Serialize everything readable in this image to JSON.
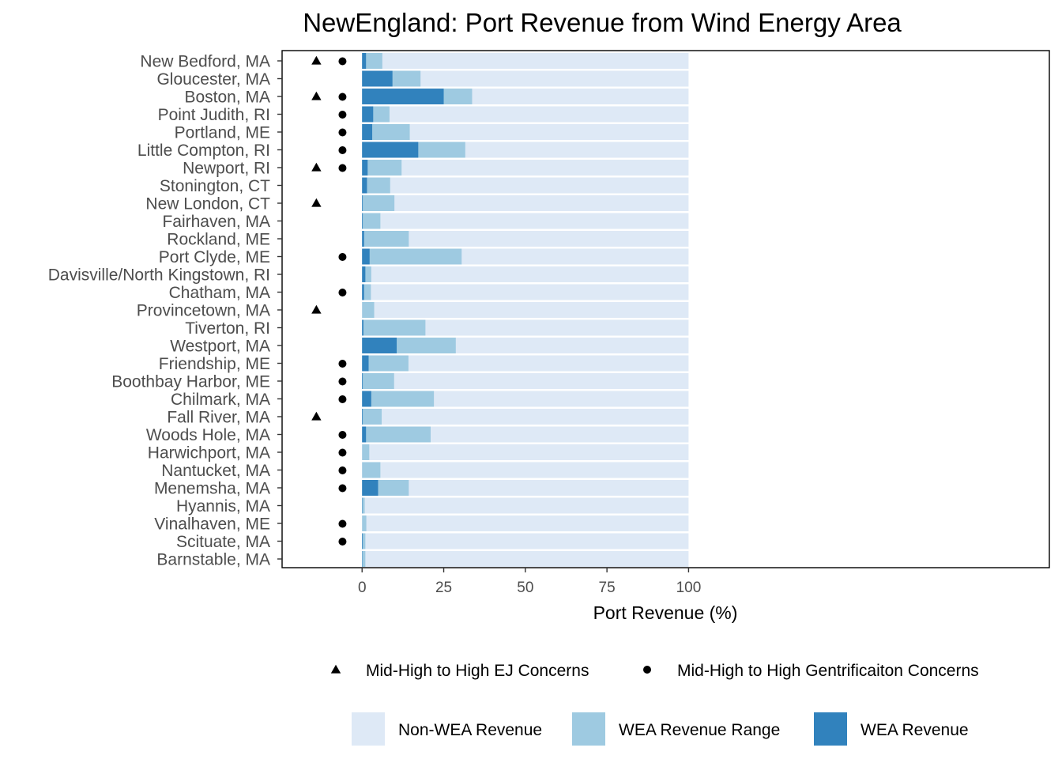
{
  "chart_data": {
    "type": "bar",
    "title": "NewEngland: Port Revenue from Wind Energy Area",
    "xlabel": "Port Revenue (%)",
    "ylabel": "",
    "xlim": [
      -24.5,
      210.5
    ],
    "xticks": [
      0,
      25,
      50,
      75,
      100
    ],
    "grid": false,
    "legend_position": "bottom",
    "colors": {
      "non_wea": "#dee9f6",
      "wea_range": "#9ecae1",
      "wea": "#3182bd",
      "marker": "#000000"
    },
    "categories": [
      "New Bedford, MA",
      "Gloucester, MA",
      "Boston, MA",
      "Point Judith, RI",
      "Portland, ME",
      "Little Compton, RI",
      "Newport, RI",
      "Stonington, CT",
      "New London, CT",
      "Fairhaven, MA",
      "Rockland, ME",
      "Port Clyde, ME",
      "Davisville/North Kingstown, RI",
      "Chatham, MA",
      "Provincetown, MA",
      "Tiverton, RI",
      "Westport, MA",
      "Friendship, ME",
      "Boothbay Harbor, ME",
      "Chilmark, MA",
      "Fall River, MA",
      "Woods Hole, MA",
      "Harwichport, MA",
      "Nantucket, MA",
      "Menemsha, MA",
      "Hyannis, MA",
      "Vinalhaven, ME",
      "Scituate, MA",
      "Barnstable, MA"
    ],
    "series": [
      {
        "name": "Non-WEA Revenue",
        "values": [
          100,
          100,
          100,
          100,
          100,
          100,
          100,
          100,
          100,
          100,
          100,
          100,
          100,
          100,
          100,
          100,
          100,
          100,
          100,
          100,
          100,
          100,
          100,
          100,
          100,
          100,
          100,
          100,
          100
        ]
      },
      {
        "name": "WEA Revenue Range",
        "values": [
          6.2,
          17.9,
          33.7,
          8.4,
          14.6,
          31.6,
          12.1,
          8.6,
          9.9,
          5.6,
          14.3,
          30.5,
          2.8,
          2.7,
          3.7,
          19.4,
          28.7,
          14.2,
          9.8,
          22.0,
          6.0,
          21.0,
          2.2,
          5.6,
          14.3,
          0.8,
          1.3,
          1.0,
          1.0
        ]
      },
      {
        "name": "WEA Revenue",
        "values": [
          1.2,
          9.3,
          25.0,
          3.4,
          3.1,
          17.2,
          1.7,
          1.5,
          0.2,
          0.2,
          0.6,
          2.3,
          1.0,
          0.6,
          0.0,
          0.4,
          10.6,
          2.0,
          0.2,
          2.8,
          0.2,
          1.2,
          0.0,
          0.0,
          4.9,
          0.1,
          0.0,
          0.2,
          0.1
        ]
      }
    ],
    "markers": {
      "ej": {
        "name": "Mid-High to High EJ Concerns",
        "shape": "triangle",
        "flags": [
          true,
          false,
          true,
          false,
          false,
          false,
          true,
          false,
          true,
          false,
          false,
          false,
          false,
          false,
          true,
          false,
          false,
          false,
          false,
          false,
          true,
          false,
          false,
          false,
          false,
          false,
          false,
          false,
          false
        ]
      },
      "gent": {
        "name": "Mid-High to High Gentrificaiton Concerns",
        "shape": "circle",
        "flags": [
          true,
          false,
          true,
          true,
          true,
          true,
          true,
          false,
          false,
          false,
          false,
          true,
          false,
          true,
          false,
          false,
          false,
          true,
          true,
          true,
          false,
          true,
          true,
          true,
          true,
          false,
          true,
          true,
          false
        ]
      }
    },
    "legend": {
      "shapes": [
        {
          "name": "Mid-High to High EJ Concerns",
          "shape": "triangle"
        },
        {
          "name": "Mid-High to High Gentrificaiton Concerns",
          "shape": "circle"
        }
      ],
      "fills": [
        {
          "name": "Non-WEA Revenue",
          "color": "#dee9f6"
        },
        {
          "name": "WEA Revenue Range",
          "color": "#9ecae1"
        },
        {
          "name": "WEA Revenue",
          "color": "#3182bd"
        }
      ]
    }
  }
}
